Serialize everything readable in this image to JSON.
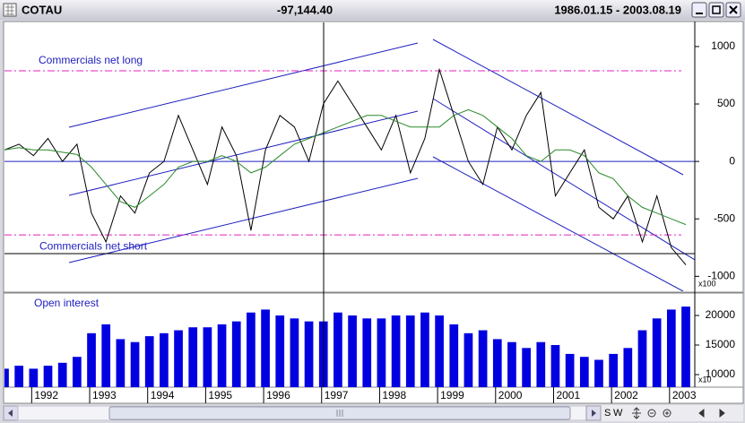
{
  "window": {
    "title": "COTAU",
    "value": "-97,144.40",
    "range": "1986.01.15 - 2003.08.19"
  },
  "toolbar": [
    "S",
    "W"
  ],
  "chart_data": [
    {
      "type": "line",
      "categories": [
        null,
        null,
        "1992",
        null,
        null,
        null,
        "1993",
        null,
        null,
        null,
        "1994",
        null,
        null,
        null,
        "1995",
        null,
        null,
        null,
        "1996",
        null,
        null,
        null,
        "1997",
        null,
        null,
        null,
        "1998",
        null,
        null,
        null,
        "1999",
        null,
        null,
        null,
        "2000",
        null,
        null,
        null,
        "2001",
        null,
        null,
        null,
        "2002",
        null,
        null,
        null,
        "2003",
        null
      ],
      "series": [
        {
          "color": "#000000",
          "values": [
            100,
            150,
            50,
            200,
            0,
            150,
            -450,
            -700,
            -300,
            -450,
            -100,
            0,
            400,
            100,
            -200,
            300,
            50,
            -600,
            100,
            400,
            300,
            0,
            500,
            700,
            500,
            300,
            100,
            400,
            -100,
            200,
            800,
            400,
            0,
            -200,
            300,
            100,
            400,
            600,
            -300,
            -100,
            100,
            -400,
            -500,
            -300,
            -700,
            -300,
            -750,
            -900
          ]
        },
        {
          "color": "#2a8a2a",
          "values": [
            100,
            120,
            100,
            100,
            80,
            60,
            -50,
            -200,
            -350,
            -400,
            -300,
            -200,
            -50,
            0,
            0,
            50,
            0,
            -100,
            -50,
            50,
            150,
            200,
            250,
            300,
            350,
            400,
            400,
            350,
            300,
            300,
            300,
            400,
            450,
            400,
            300,
            200,
            50,
            0,
            100,
            100,
            50,
            -100,
            -150,
            -300,
            -400,
            -450,
            -500,
            -550
          ]
        }
      ],
      "ylim": [
        -1130,
        1210
      ],
      "yticks": [
        -1000,
        -500,
        0,
        500,
        1000
      ],
      "y_unit_label": "x100",
      "zero_line_color": "#2020c0",
      "reference_lines": [
        {
          "value": 789,
          "label": "Commercials net long",
          "color": "#e020c0"
        },
        {
          "value": -640,
          "label": "Commercials net short",
          "color": "#e020c0"
        }
      ]
    },
    {
      "type": "bar",
      "title": "Open interest",
      "series": [
        {
          "color": "#0000e0",
          "values": [
            11000,
            11500,
            11000,
            11500,
            12000,
            13000,
            17000,
            18500,
            16000,
            15500,
            16500,
            17000,
            17500,
            18000,
            18000,
            18500,
            19000,
            20500,
            21000,
            20000,
            19500,
            19000,
            19000,
            20500,
            20000,
            19500,
            19500,
            20000,
            20000,
            20500,
            20000,
            18500,
            17000,
            17500,
            16000,
            15500,
            14500,
            15500,
            15000,
            13500,
            13000,
            12500,
            13500,
            14500,
            17500,
            19500,
            21000,
            21500
          ]
        }
      ],
      "ylim": [
        7880,
        23640
      ],
      "yticks": [
        10000,
        15000,
        20000
      ],
      "y_unit_label": "x10"
    }
  ]
}
